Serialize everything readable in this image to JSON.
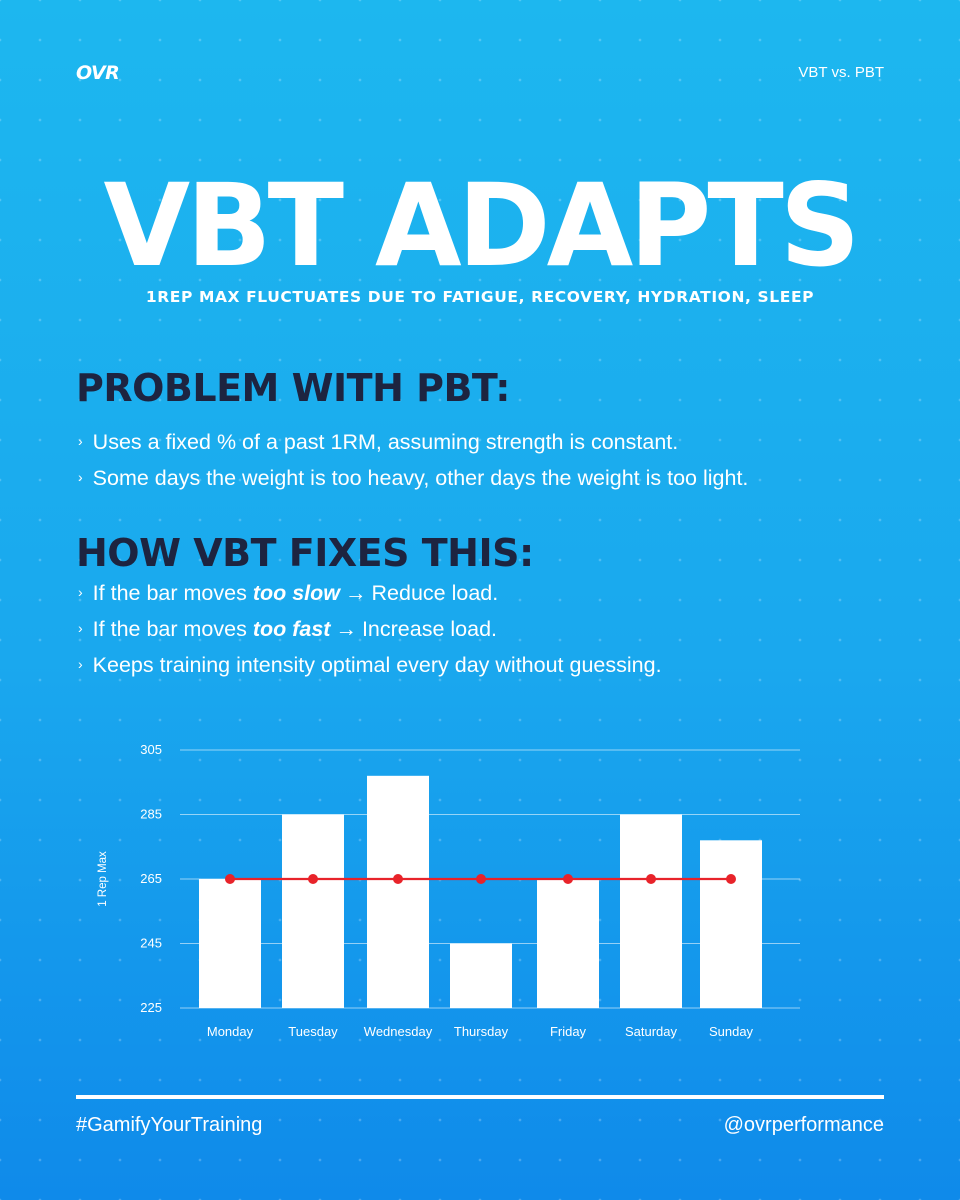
{
  "brand": {
    "logo_text": "OVR",
    "header_tag": "VBT vs. PBT"
  },
  "headline": "VBT ADAPTS",
  "subtitle": "1REP MAX FLUCTUATES DUE TO FATIGUE, RECOVERY, HYDRATION, SLEEP",
  "problem": {
    "title": "PROBLEM WITH PBT:",
    "bullets": [
      "Uses a fixed % of a past 1RM, assuming strength is constant.",
      "Some days the weight is too heavy, other days the weight is too light."
    ]
  },
  "fix": {
    "title": "HOW VBT FIXES THIS:",
    "bullet1": {
      "pre": "If the bar moves",
      "em": "too slow",
      "arrow": "→",
      "post": "Reduce load."
    },
    "bullet2": {
      "pre": "If the bar moves",
      "em": "too fast",
      "arrow": "→",
      "post": "Increase load."
    },
    "bullet3": "Keeps training intensity optimal every day without guessing."
  },
  "bullet_marker": "›",
  "chart_data": {
    "type": "bar",
    "categories": [
      "Monday",
      "Tuesday",
      "Wednesday",
      "Thursday",
      "Friday",
      "Saturday",
      "Sunday"
    ],
    "series": [
      {
        "values": [
          265,
          285,
          297,
          245,
          265,
          285,
          277
        ],
        "color": "#ffffff"
      }
    ],
    "line_series": [
      {
        "values": [
          265,
          265,
          265,
          265,
          265,
          265,
          265
        ],
        "color": "#e8232a"
      }
    ],
    "ylabel": "1 Rep Max",
    "xlabel": "",
    "ylim": [
      225,
      305
    ],
    "yticks": [
      225,
      245,
      265,
      285,
      305
    ],
    "grid": true
  },
  "footer": {
    "hashtag": "#GamifyYourTraining",
    "handle": "@ovrperformance"
  }
}
